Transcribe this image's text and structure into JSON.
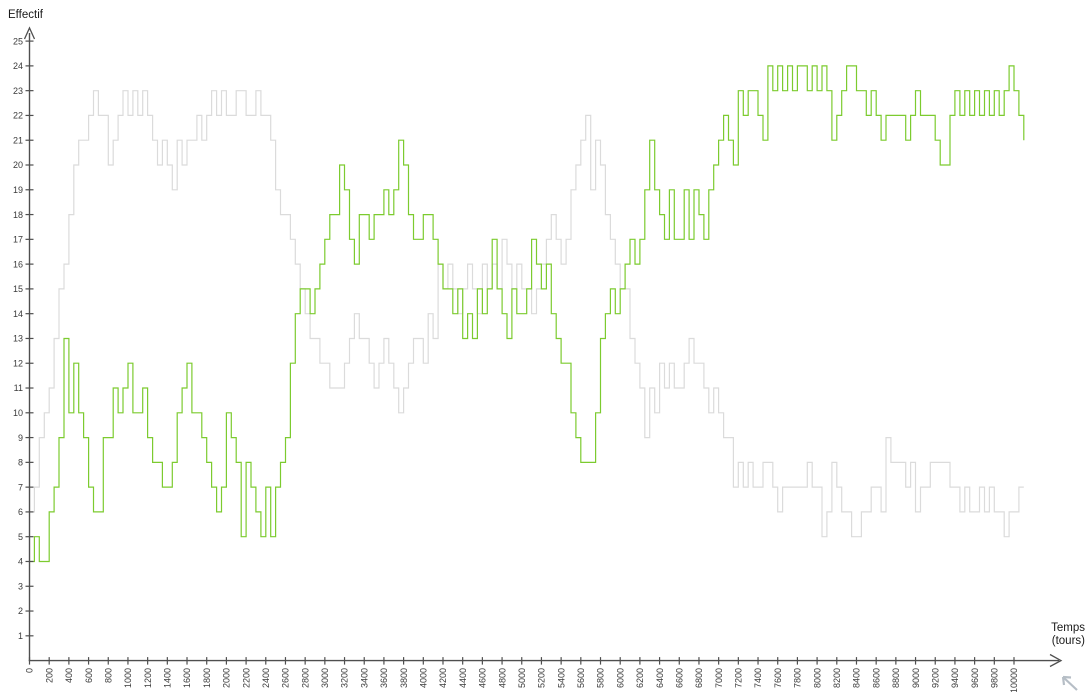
{
  "labels": {
    "y_axis_title": "Effectif",
    "x_axis_title_line1": "Temps",
    "x_axis_title_line2": "(tours)"
  },
  "colors": {
    "background": "#ffffff",
    "axis": "#4f4f4f",
    "tick_text": "#3b3b3b",
    "title_text": "#1a1a1a",
    "green_series": "#7CCB2F",
    "gray_series": "#DBDBDB",
    "cursor": "#b6bec6"
  },
  "chart_data": {
    "type": "line",
    "style": "step-after",
    "title": "",
    "xlabel": "Temps (tours)",
    "ylabel": "Effectif",
    "grid": false,
    "legend": "none",
    "xlim": [
      0,
      10450
    ],
    "ylim": [
      0,
      25
    ],
    "x_tick_step": 200,
    "x_tick_max": 10000,
    "y_tick_step": 1,
    "y_tick_min": 1,
    "y_tick_max": 25,
    "t_step": 50,
    "t_start": 0,
    "series": [
      {
        "name": "effectif-gris",
        "color": "#DBDBDB",
        "values": [
          6,
          7,
          9,
          10,
          11,
          13,
          15,
          16,
          18,
          20,
          21,
          21,
          22,
          23,
          22,
          22,
          20,
          21,
          22,
          23,
          22,
          23,
          22,
          23,
          22,
          21,
          20,
          21,
          20,
          19,
          21,
          20,
          21,
          21,
          22,
          21,
          22,
          23,
          22,
          23,
          22,
          22,
          23,
          23,
          22,
          22,
          23,
          22,
          22,
          21,
          19,
          18,
          18,
          17,
          16,
          15,
          14,
          13,
          13,
          12,
          12,
          11,
          11,
          11,
          12,
          13,
          14,
          13,
          13,
          12,
          11,
          12,
          13,
          12,
          11,
          10,
          11,
          12,
          13,
          13,
          12,
          14,
          13,
          16,
          15,
          16,
          15,
          14,
          15,
          16,
          15,
          14,
          16,
          15,
          16,
          15,
          17,
          16,
          15,
          16,
          15,
          15,
          14,
          15,
          16,
          17,
          18,
          17,
          16,
          17,
          19,
          20,
          21,
          22,
          19,
          21,
          20,
          18,
          17,
          16,
          15,
          15,
          13,
          12,
          11,
          9,
          11,
          10,
          12,
          11,
          12,
          11,
          11,
          12,
          13,
          12,
          12,
          11,
          10,
          11,
          10,
          9,
          9,
          7,
          8,
          7,
          8,
          7,
          7,
          8,
          8,
          7,
          6,
          7,
          7,
          7,
          7,
          7,
          8,
          7,
          7,
          5,
          6,
          8,
          7,
          6,
          6,
          5,
          5,
          6,
          6,
          7,
          7,
          6,
          9,
          8,
          8,
          8,
          7,
          8,
          6,
          7,
          7,
          8,
          8,
          8,
          8,
          7,
          7,
          6,
          7,
          6,
          6,
          7,
          6,
          7,
          6,
          6,
          5,
          6,
          6,
          7,
          7
        ]
      },
      {
        "name": "effectif-vert",
        "color": "#7CCB2F",
        "values": [
          4,
          5,
          4,
          4,
          6,
          7,
          9,
          13,
          10,
          12,
          10,
          9,
          7,
          6,
          6,
          9,
          9,
          11,
          10,
          11,
          12,
          10,
          10,
          11,
          9,
          8,
          8,
          7,
          7,
          8,
          10,
          11,
          12,
          10,
          10,
          9,
          8,
          7,
          6,
          7,
          10,
          9,
          8,
          5,
          8,
          7,
          6,
          5,
          7,
          5,
          7,
          8,
          9,
          12,
          14,
          15,
          15,
          14,
          15,
          16,
          17,
          18,
          18,
          20,
          19,
          17,
          16,
          18,
          18,
          17,
          18,
          18,
          19,
          18,
          19,
          21,
          20,
          18,
          17,
          17,
          18,
          18,
          17,
          16,
          15,
          15,
          14,
          15,
          13,
          14,
          13,
          15,
          14,
          15,
          17,
          15,
          14,
          13,
          15,
          14,
          14,
          15,
          17,
          16,
          15,
          16,
          14,
          13,
          12,
          12,
          10,
          9,
          8,
          8,
          8,
          10,
          13,
          14,
          15,
          14,
          15,
          16,
          17,
          16,
          17,
          19,
          21,
          19,
          18,
          17,
          19,
          17,
          17,
          19,
          17,
          19,
          18,
          17,
          19,
          20,
          21,
          22,
          21,
          20,
          23,
          22,
          23,
          23,
          22,
          21,
          24,
          23,
          24,
          23,
          24,
          23,
          24,
          24,
          23,
          24,
          23,
          24,
          23,
          21,
          22,
          23,
          24,
          24,
          23,
          23,
          22,
          23,
          22,
          21,
          22,
          22,
          22,
          22,
          21,
          22,
          23,
          22,
          22,
          22,
          21,
          20,
          20,
          22,
          23,
          22,
          23,
          22,
          23,
          22,
          23,
          22,
          23,
          22,
          23,
          24,
          23,
          22,
          21
        ]
      }
    ]
  }
}
